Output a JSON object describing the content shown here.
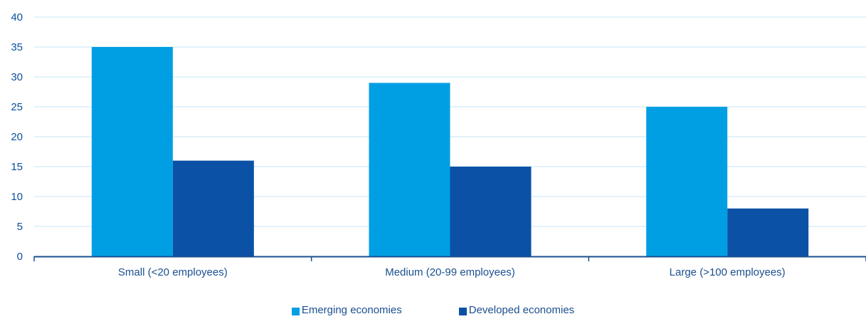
{
  "chart_data": {
    "type": "bar",
    "categories": [
      "Small (<20 employees)",
      "Medium (20-99 employees)",
      "Large (>100 employees)"
    ],
    "series": [
      {
        "name": "Emerging economies",
        "values": [
          35,
          29,
          25
        ],
        "color": "#009fe3"
      },
      {
        "name": "Developed economies",
        "values": [
          16,
          15,
          8
        ],
        "color": "#0b51a6"
      }
    ],
    "ylim": [
      0,
      40
    ],
    "yticks": [
      0,
      5,
      10,
      15,
      20,
      25,
      30,
      35,
      40
    ],
    "grid": true,
    "legend_position": "bottom-center",
    "gridline_color": "#c5e6f7",
    "axis_color": "#1a4f8f"
  }
}
